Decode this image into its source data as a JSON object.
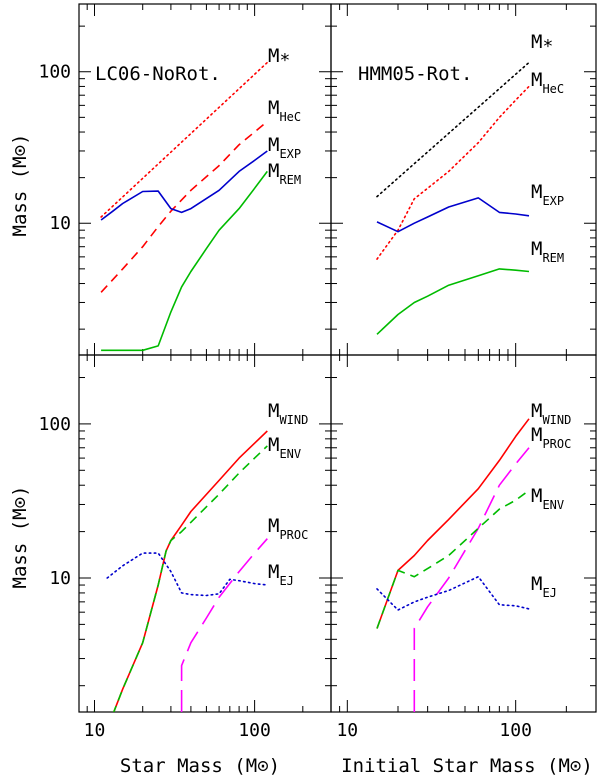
{
  "chart_data": {
    "type": "line",
    "xscale": "log",
    "yscale": "log",
    "xlim": [
      8,
      300
    ],
    "ylabel": "Mass (M⊙)",
    "xlabels": [
      "Star Mass (M⊙)",
      "Initial Star Mass (M⊙)"
    ],
    "panels": [
      {
        "id": "top-left",
        "title": "LC06-NoRot.",
        "ylim": [
          1.35,
          280
        ],
        "series": [
          {
            "name": "M*",
            "label": "M",
            "sub": "*",
            "color": "#ff0000",
            "style": "dotted",
            "x": [
              11,
              120
            ],
            "y": [
              11,
              115
            ]
          },
          {
            "name": "MHeC",
            "label": "M",
            "sub": "HeC",
            "color": "#ff0000",
            "style": "dashed",
            "x": [
              11,
              15,
              20,
              25,
              30,
              40,
              60,
              80,
              100,
              120
            ],
            "y": [
              3.5,
              5,
              7,
              9.5,
              12,
              16.5,
              24,
              33,
              40,
              47
            ]
          },
          {
            "name": "MEXP",
            "label": "M",
            "sub": "EXP",
            "color": "#0000cc",
            "style": "solid",
            "x": [
              11,
              13,
              15,
              20,
              25,
              30,
              35,
              40,
              60,
              80,
              100,
              120
            ],
            "y": [
              10.5,
              12,
              13.5,
              16.2,
              16.3,
              12.5,
              11.8,
              12.5,
              16.5,
              22,
              26,
              30
            ]
          },
          {
            "name": "MREM",
            "label": "M",
            "sub": "REM",
            "color": "#00bb00",
            "style": "solid",
            "x": [
              11,
              20,
              25,
              30,
              35,
              40,
              50,
              60,
              80,
              100,
              120
            ],
            "y": [
              1.45,
              1.45,
              1.55,
              2.6,
              3.8,
              4.8,
              6.8,
              9,
              12.5,
              17,
              22
            ]
          }
        ]
      },
      {
        "id": "top-right",
        "title": "HMM05-Rot.",
        "ylim": [
          1.35,
          280
        ],
        "series": [
          {
            "name": "M*",
            "label": "M",
            "sub": "*",
            "color": "#000000",
            "style": "dotted",
            "x": [
              15,
              120
            ],
            "y": [
              15,
              115
            ]
          },
          {
            "name": "MHeC",
            "label": "M",
            "sub": "HeC",
            "color": "#ff0000",
            "style": "dotted",
            "x": [
              15,
              20,
              25,
              30,
              40,
              60,
              80,
              100,
              120
            ],
            "y": [
              5.8,
              9,
              14.5,
              17,
              22,
              34,
              50,
              65,
              80
            ]
          },
          {
            "name": "MEXP",
            "label": "M",
            "sub": "EXP",
            "color": "#0000cc",
            "style": "solid",
            "x": [
              15,
              20,
              25,
              30,
              40,
              60,
              80,
              100,
              120
            ],
            "y": [
              10.2,
              8.8,
              10,
              11,
              12.8,
              14.7,
              11.8,
              11.5,
              11.2
            ]
          },
          {
            "name": "MREM",
            "label": "M",
            "sub": "REM",
            "color": "#00bb00",
            "style": "solid",
            "x": [
              15,
              20,
              25,
              30,
              40,
              60,
              80,
              100,
              120
            ],
            "y": [
              1.85,
              2.5,
              3,
              3.3,
              3.9,
              4.5,
              5,
              4.9,
              4.8
            ]
          }
        ]
      },
      {
        "id": "bottom-left",
        "title": "",
        "ylim": [
          1.35,
          280
        ],
        "series": [
          {
            "name": "MWIND",
            "label": "M",
            "sub": "WIND",
            "color": "#ff0000",
            "style": "solid",
            "x": [
              13,
              15,
              20,
              25,
              28,
              30,
              35,
              40,
              60,
              80,
              100,
              120
            ],
            "y": [
              1.3,
              1.9,
              3.8,
              9,
              15,
              17.5,
              22,
              27,
              43,
              60,
              75,
              90
            ]
          },
          {
            "name": "MENV",
            "label": "M",
            "sub": "ENV",
            "color": "#00bb00",
            "style": "dashed",
            "x": [
              13,
              15,
              20,
              25,
              28,
              30,
              35,
              40,
              60,
              80,
              100,
              120
            ],
            "y": [
              1.3,
              1.9,
              3.8,
              9,
              15,
              17.5,
              20,
              23,
              35,
              48,
              60,
              72
            ]
          },
          {
            "name": "MPROC",
            "label": "M",
            "sub": "PROC",
            "color": "#ff00ff",
            "style": "longdash",
            "x": [
              35,
              35,
              40,
              50,
              60,
              80,
              100,
              120
            ],
            "y": [
              1.35,
              2.7,
              3.8,
              5.5,
              7.5,
              11,
              14.5,
              18
            ]
          },
          {
            "name": "MEJ",
            "label": "M",
            "sub": "EJ",
            "color": "#0000cc",
            "style": "dotted",
            "x": [
              12,
              15,
              20,
              25,
              30,
              35,
              40,
              50,
              60,
              70,
              80,
              100,
              120
            ],
            "y": [
              10,
              12,
              14.5,
              14.5,
              11,
              8,
              7.8,
              7.7,
              7.9,
              9.8,
              9.6,
              9.2,
              9
            ]
          }
        ]
      },
      {
        "id": "bottom-right",
        "title": "",
        "ylim": [
          1.35,
          280
        ],
        "series": [
          {
            "name": "MWIND",
            "label": "M",
            "sub": "WIND",
            "color": "#ff0000",
            "style": "solid",
            "x": [
              15,
              20,
              25,
              30,
              40,
              60,
              80,
              100,
              120
            ],
            "y": [
              4.7,
              11.2,
              14,
              17.5,
              24,
              38,
              58,
              83,
              108
            ]
          },
          {
            "name": "MPROC",
            "label": "M",
            "sub": "PROC",
            "color": "#ff00ff",
            "style": "longdash",
            "x": [
              25,
              25,
              30,
              40,
              60,
              80,
              100,
              120
            ],
            "y": [
              1.35,
              4.7,
              6.5,
              10,
              21,
              40,
              55,
              70
            ]
          },
          {
            "name": "MENV",
            "label": "M",
            "sub": "ENV",
            "color": "#00bb00",
            "style": "dashed",
            "x": [
              15,
              20,
              25,
              30,
              40,
              60,
              80,
              100,
              120
            ],
            "y": [
              4.7,
              11.2,
              10.2,
              11.5,
              14,
              21,
              28,
              32,
              37
            ]
          },
          {
            "name": "MEJ",
            "label": "M",
            "sub": "EJ",
            "color": "#0000cc",
            "style": "dotted",
            "x": [
              15,
              20,
              25,
              30,
              40,
              60,
              80,
              100,
              120
            ],
            "y": [
              8.5,
              6.2,
              7,
              7.5,
              8.3,
              10.2,
              6.7,
              6.6,
              6.3
            ]
          }
        ]
      }
    ],
    "yticks": [
      10,
      100
    ],
    "xticks": [
      10,
      100
    ]
  }
}
